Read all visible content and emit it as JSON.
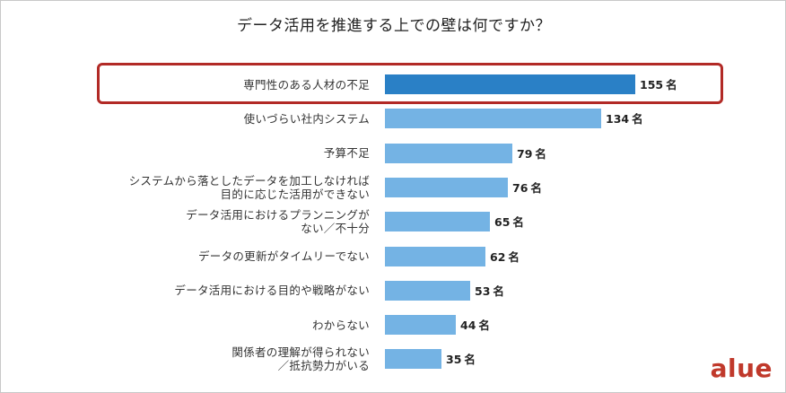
{
  "chart_data": {
    "type": "bar",
    "orientation": "horizontal",
    "title": "データ活用を推進する上での壁は何ですか？",
    "categories": [
      "専門性のある人材の不足",
      "使いづらい社内システム",
      "予算不足",
      "システムから落としたデータを加工しなければ\n目的に応じた活用ができない",
      "データ活用におけるプランニングが\nない／不十分",
      "データの更新がタイムリーでない",
      "データ活用における目的や戦略がない",
      "わからない",
      "関係者の理解が得られない\n／抵抗勢力がいる"
    ],
    "values": [
      155,
      134,
      79,
      76,
      65,
      62,
      53,
      44,
      35
    ],
    "unit": "名",
    "highlighted_index": 0,
    "xlim": [
      0,
      155
    ],
    "colors": {
      "highlight": "#2a80c6",
      "normal": "#74b3e4"
    }
  },
  "brand": {
    "text": "alue",
    "color": "#c0392b"
  }
}
